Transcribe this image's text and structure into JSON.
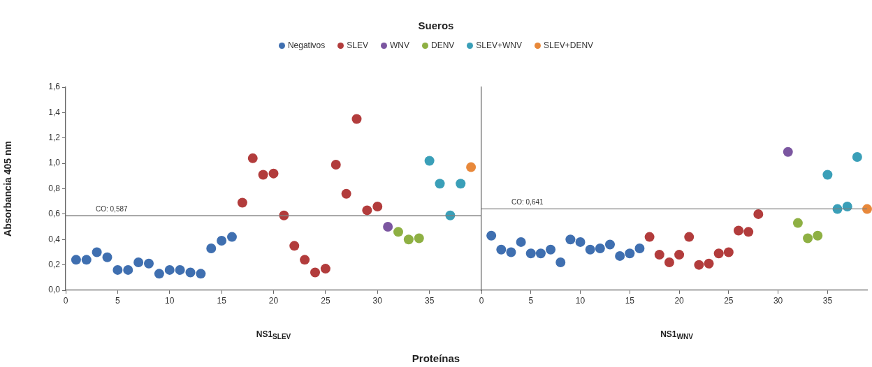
{
  "chart_data": [
    {
      "type": "scatter",
      "legend_title": "Sueros",
      "legend": "top",
      "ylabel": "Absorbancia 405 nm",
      "xlabel": "NS1$_{SLEV}$",
      "annotations": [
        "Proteínas"
      ],
      "marker": "circle",
      "xlim": [
        0,
        40
      ],
      "xticks": [
        0,
        5,
        10,
        15,
        20,
        25,
        30,
        35
      ],
      "ylim": [
        0,
        1.6
      ],
      "yticks": [
        {
          "value": 0,
          "label": "0,0"
        },
        {
          "value": 0.2,
          "label": "0,2"
        },
        {
          "value": 0.4,
          "label": "0,4"
        },
        {
          "value": 0.6,
          "label": "0,6"
        },
        {
          "value": 0.8,
          "label": "0,8"
        },
        {
          "value": 1,
          "label": "1,0"
        },
        {
          "value": 1.2,
          "label": "1,2"
        },
        {
          "value": 1.4,
          "label": "1,4"
        },
        {
          "value": 1.6,
          "label": "1,6"
        }
      ],
      "ref_lines": [
        {
          "axis": "y",
          "value": 0.587,
          "label": "CO: 0,587",
          "color": "#808080"
        }
      ],
      "series": [
        {
          "name": "Negativos",
          "color": "#3f6fb0",
          "x": [
            1,
            2,
            3,
            4,
            5,
            6,
            7,
            8,
            9,
            10,
            11,
            12,
            13,
            14,
            15,
            16
          ],
          "values": [
            0.24,
            0.24,
            0.3,
            0.26,
            0.16,
            0.16,
            0.22,
            0.21,
            0.13,
            0.16,
            0.16,
            0.14,
            0.13,
            0.33,
            0.39,
            0.42
          ]
        },
        {
          "name": "SLEV",
          "color": "#b23c3c",
          "x": [
            17,
            18,
            19,
            20,
            21,
            22,
            23,
            24,
            25,
            26,
            27,
            28,
            29,
            30
          ],
          "values": [
            0.69,
            1.04,
            0.91,
            0.92,
            0.59,
            0.35,
            0.24,
            0.14,
            0.17,
            0.99,
            0.76,
            1.35,
            0.63,
            0.66
          ]
        },
        {
          "name": "WNV",
          "color": "#7b56a0",
          "x": [
            31
          ],
          "values": [
            0.5
          ]
        },
        {
          "name": "DENV",
          "color": "#8eb043",
          "x": [
            32,
            33,
            34
          ],
          "values": [
            0.46,
            0.4,
            0.41
          ]
        },
        {
          "name": "SLEV+WNV",
          "color": "#3a9fb8",
          "x": [
            35,
            36,
            37,
            38
          ],
          "values": [
            1.02,
            0.84,
            0.59,
            0.84
          ]
        },
        {
          "name": "SLEV+DENV",
          "color": "#e8883a",
          "x": [
            39
          ],
          "values": [
            0.97
          ]
        }
      ]
    },
    {
      "type": "scatter",
      "xlabel": "NS1$_{WNV}$",
      "marker": "circle",
      "tick_labels": "x",
      "xlim": [
        0,
        39
      ],
      "xticks": [
        0,
        5,
        10,
        15,
        20,
        25,
        30,
        35
      ],
      "ylim": [
        0,
        1.6
      ],
      "ref_lines": [
        {
          "axis": "y",
          "value": 0.641,
          "label": "CO: 0,641",
          "color": "#808080"
        }
      ],
      "series": [
        {
          "color": "#3f6fb0",
          "x": [
            1,
            2,
            3,
            4,
            5,
            6,
            7,
            8,
            9,
            10,
            11,
            12,
            13,
            14,
            15,
            16
          ],
          "values": [
            0.43,
            0.32,
            0.3,
            0.38,
            0.29,
            0.29,
            0.32,
            0.22,
            0.4,
            0.38,
            0.32,
            0.33,
            0.36,
            0.27,
            0.29,
            0.33
          ]
        },
        {
          "color": "#b23c3c",
          "x": [
            17,
            18,
            19,
            20,
            21,
            22,
            23,
            24,
            25,
            26,
            27,
            28
          ],
          "values": [
            0.42,
            0.28,
            0.22,
            0.28,
            0.42,
            0.2,
            0.21,
            0.29,
            0.3,
            0.47,
            0.46,
            0.6
          ]
        },
        {
          "color": "#7b56a0",
          "x": [
            31
          ],
          "values": [
            1.09
          ]
        },
        {
          "color": "#8eb043",
          "x": [
            32,
            33,
            34
          ],
          "values": [
            0.53,
            0.41,
            0.43
          ]
        },
        {
          "color": "#3a9fb8",
          "x": [
            35,
            36,
            37,
            38
          ],
          "values": [
            0.91,
            0.64,
            0.66,
            1.05
          ]
        },
        {
          "color": "#e8883a",
          "x": [
            39
          ],
          "values": [
            0.64
          ]
        }
      ]
    }
  ]
}
